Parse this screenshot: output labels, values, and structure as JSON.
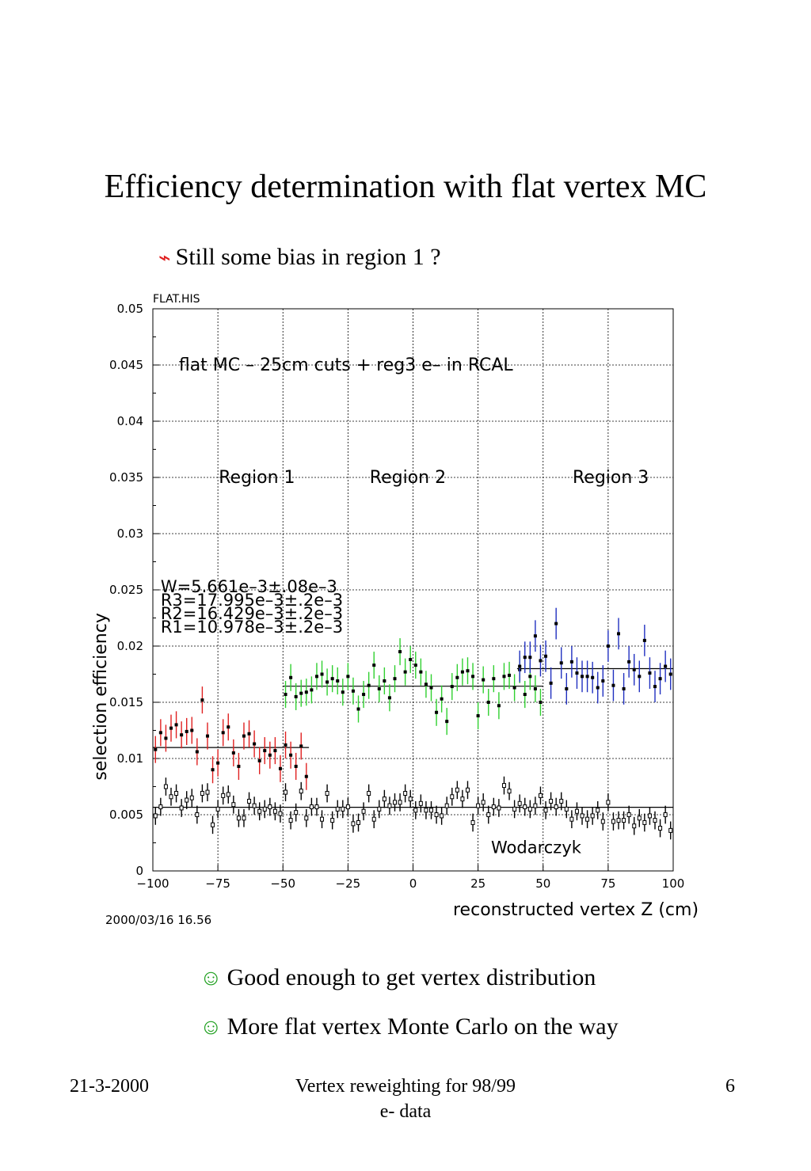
{
  "slide": {
    "title": "Efficiency determination with flat vertex MC",
    "bullets": [
      {
        "icon": "lightning-icon",
        "glyph": "⌁",
        "text": "Still some bias in region 1 ?"
      },
      {
        "icon": "smiley-icon",
        "glyph": "☺",
        "text": "Good enough to get vertex distribution"
      },
      {
        "icon": "smiley-icon",
        "glyph": "☺",
        "text": "More flat vertex Monte Carlo on the way"
      }
    ],
    "footer": {
      "date": "21-3-2000",
      "center": "Vertex reweighting for 98/99 e- data",
      "page": "6"
    }
  },
  "chart_data": {
    "type": "scatter",
    "title": "flat MC – 25cm cuts + reg3 e– in RCAL",
    "file_label": "FLAT.HIS",
    "date_label": "2000/03/16   16.56",
    "author": "Wodarczyk",
    "xlabel": "reconstructed vertex Z (cm)",
    "ylabel": "selection efficiency",
    "xlim": [
      -100,
      100
    ],
    "ylim": [
      0,
      0.05
    ],
    "xticks": [
      -100,
      -75,
      -50,
      -25,
      0,
      25,
      50,
      75,
      100
    ],
    "yticks": [
      0,
      0.005,
      0.01,
      0.015,
      0.02,
      0.025,
      0.03,
      0.035,
      0.04,
      0.045,
      0.05
    ],
    "grid": true,
    "region_labels": [
      "Region 1",
      "Region 2",
      "Region 3"
    ],
    "fit_results": [
      "W=5.661e–3±.08e–3",
      "R3=17.995e–3±.2e–3",
      "R2=16.429e–3±.2e–3",
      "R1=10.978e–3±.2e–3"
    ],
    "fit_lines": [
      {
        "name": "W",
        "x": [
          -100,
          100
        ],
        "y": 0.005661,
        "color": "#000000"
      },
      {
        "name": "R1",
        "x": [
          -100,
          -40
        ],
        "y": 0.010978,
        "color": "#000000"
      },
      {
        "name": "R2",
        "x": [
          -50,
          50
        ],
        "y": 0.016429,
        "color": "#000000"
      },
      {
        "name": "R3",
        "x": [
          40,
          100
        ],
        "y": 0.017995,
        "color": "#000000"
      }
    ],
    "series": [
      {
        "color": "#e02020",
        "marker": "filled",
        "err": 0.0012,
        "x": [
          -99,
          -97,
          -95,
          -93,
          -91,
          -89,
          -87,
          -85,
          -83,
          -81,
          -79,
          -77,
          -75,
          -73,
          -71,
          -69,
          -67,
          -65,
          -63,
          -61,
          -59,
          -57,
          -55,
          -53,
          -51,
          -49,
          -47,
          -45,
          -43,
          -41
        ],
        "y": [
          0.0108,
          0.0123,
          0.0118,
          0.0127,
          0.013,
          0.0121,
          0.0124,
          0.0125,
          0.0106,
          0.0152,
          0.012,
          0.009,
          0.0096,
          0.0123,
          0.0128,
          0.0105,
          0.0093,
          0.012,
          0.0122,
          0.0113,
          0.0098,
          0.0107,
          0.0103,
          0.0107,
          0.0091,
          0.0112,
          0.0103,
          0.0093,
          0.0111,
          0.0084
        ]
      },
      {
        "color": "#30d030",
        "marker": "filled",
        "err": 0.0012,
        "x": [
          -49,
          -47,
          -45,
          -43,
          -41,
          -39,
          -37,
          -35,
          -33,
          -31,
          -29,
          -27,
          -25,
          -23,
          -21,
          -19,
          -17,
          -15,
          -13,
          -11,
          -9,
          -7,
          -5,
          -3,
          -1,
          1,
          3,
          5,
          7,
          9,
          11,
          13,
          15,
          17,
          19,
          21,
          23,
          25,
          27,
          29,
          31,
          33,
          35,
          37,
          39,
          41,
          43,
          45,
          47,
          49
        ],
        "y": [
          0.0157,
          0.0172,
          0.0155,
          0.0158,
          0.0159,
          0.0161,
          0.0173,
          0.0175,
          0.0168,
          0.0171,
          0.0169,
          0.0159,
          0.0173,
          0.016,
          0.0144,
          0.0157,
          0.0165,
          0.0183,
          0.0162,
          0.0169,
          0.0154,
          0.0171,
          0.0195,
          0.0177,
          0.0188,
          0.0183,
          0.0177,
          0.0166,
          0.0163,
          0.0141,
          0.0153,
          0.0133,
          0.0164,
          0.0172,
          0.0177,
          0.0178,
          0.0173,
          0.0138,
          0.017,
          0.015,
          0.0171,
          0.0147,
          0.0173,
          0.0174,
          0.0163,
          0.0179,
          0.0157,
          0.0173,
          0.0162,
          0.015
        ]
      },
      {
        "color": "#2030c0",
        "marker": "filled",
        "err": 0.0014,
        "x": [
          41,
          43,
          45,
          47,
          49,
          51,
          53,
          55,
          57,
          59,
          61,
          63,
          65,
          67,
          69,
          71,
          73,
          75,
          77,
          79,
          81,
          83,
          85,
          87,
          89,
          91,
          93,
          95,
          97,
          99
        ],
        "y": [
          0.0182,
          0.019,
          0.019,
          0.0209,
          0.0187,
          0.0191,
          0.0167,
          0.022,
          0.0185,
          0.0162,
          0.0186,
          0.0176,
          0.0173,
          0.0173,
          0.0172,
          0.0163,
          0.0169,
          0.02,
          0.0165,
          0.0211,
          0.0162,
          0.0186,
          0.0179,
          0.0173,
          0.0205,
          0.0176,
          0.0164,
          0.0171,
          0.0182,
          0.0175
        ]
      },
      {
        "color": "#000000",
        "marker": "open",
        "err": 0.0008,
        "x": [
          -99,
          -97,
          -95,
          -93,
          -91,
          -89,
          -87,
          -85,
          -83,
          -81,
          -79,
          -77,
          -75,
          -73,
          -71,
          -69,
          -67,
          -65,
          -63,
          -61,
          -59,
          -57,
          -55,
          -53,
          -51,
          -49,
          -47,
          -45,
          -43,
          -41,
          -39,
          -37,
          -35,
          -33,
          -31,
          -29,
          -27,
          -25,
          -23,
          -21,
          -19,
          -17,
          -15,
          -13,
          -11,
          -9,
          -7,
          -5,
          -3,
          -1,
          1,
          3,
          5,
          7,
          9,
          11,
          13,
          15,
          17,
          19,
          21,
          23,
          25,
          27,
          29,
          31,
          33,
          35,
          37,
          39,
          41,
          43,
          45,
          47,
          49,
          51,
          53,
          55,
          57,
          59,
          61,
          63,
          65,
          67,
          69,
          71,
          73,
          75,
          77,
          79,
          81,
          83,
          85,
          87,
          89,
          91,
          93,
          95,
          97,
          99
        ],
        "y": [
          0.0049,
          0.0057,
          0.0075,
          0.0066,
          0.0069,
          0.0056,
          0.0063,
          0.0065,
          0.005,
          0.0069,
          0.007,
          0.0041,
          0.0055,
          0.0067,
          0.0068,
          0.0059,
          0.0047,
          0.0047,
          0.0062,
          0.0058,
          0.0053,
          0.0055,
          0.0057,
          0.0053,
          0.0051,
          0.007,
          0.0045,
          0.0052,
          0.0071,
          0.0047,
          0.0057,
          0.0057,
          0.0046,
          0.0069,
          0.0045,
          0.0055,
          0.0055,
          0.0057,
          0.0042,
          0.0043,
          0.0053,
          0.0069,
          0.0046,
          0.0055,
          0.0064,
          0.0058,
          0.0061,
          0.0061,
          0.0069,
          0.0064,
          0.0054,
          0.006,
          0.0054,
          0.0054,
          0.005,
          0.0049,
          0.0058,
          0.0066,
          0.0072,
          0.0064,
          0.0072,
          0.0043,
          0.0058,
          0.0061,
          0.005,
          0.0057,
          0.0056,
          0.0076,
          0.0071,
          0.0055,
          0.006,
          0.0057,
          0.0055,
          0.0058,
          0.0067,
          0.0054,
          0.0062,
          0.0057,
          0.0062,
          0.0055,
          0.0046,
          0.0053,
          0.0049,
          0.0046,
          0.0049,
          0.0054,
          0.0044,
          0.0061,
          0.0044,
          0.0045,
          0.0045,
          0.005,
          0.004,
          0.0047,
          0.0043,
          0.0049,
          0.0045,
          0.0038,
          0.005,
          0.0036
        ]
      }
    ]
  }
}
